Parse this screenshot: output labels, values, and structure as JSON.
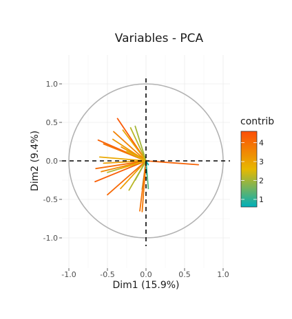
{
  "chart_data": {
    "type": "line",
    "title": "Variables - PCA",
    "xlabel": "Dim1 (15.9%)",
    "ylabel": "Dim2 (9.4%)",
    "xlim": [
      -1.0,
      1.0
    ],
    "ylim": [
      -1.0,
      1.0
    ],
    "x_ticks": [
      -1.0,
      -0.5,
      0.0,
      0.5,
      1.0
    ],
    "y_ticks": [
      -1.0,
      -0.5,
      0.0,
      0.5,
      1.0
    ],
    "x_tick_labels": [
      "-1.0",
      "-0.5",
      "0.0",
      "0.5",
      "1.0"
    ],
    "y_tick_labels": [
      "-1.0",
      "-0.5",
      "0.0",
      "0.5",
      "1.0"
    ],
    "grid": true,
    "correlation_circle": true,
    "legend": {
      "title": "contrib",
      "placement": "right",
      "scale": [
        1,
        2,
        3,
        4
      ],
      "range": [
        0.6,
        4.6
      ],
      "colors": [
        "#00AFBB",
        "#E7B800",
        "#FC4E07"
      ]
    },
    "vectors": [
      {
        "x": 0.68,
        "y": -0.05,
        "contrib": 4.2
      },
      {
        "x": -0.37,
        "y": 0.55,
        "contrib": 4.4
      },
      {
        "x": -0.62,
        "y": 0.27,
        "contrib": 4.2
      },
      {
        "x": -0.55,
        "y": 0.22,
        "contrib": 3.9
      },
      {
        "x": -0.42,
        "y": 0.38,
        "contrib": 3.6
      },
      {
        "x": -0.43,
        "y": 0.28,
        "contrib": 3.2
      },
      {
        "x": -0.3,
        "y": 0.4,
        "contrib": 2.9
      },
      {
        "x": -0.2,
        "y": 0.43,
        "contrib": 2.2
      },
      {
        "x": -0.14,
        "y": 0.45,
        "contrib": 2.0
      },
      {
        "x": -0.32,
        "y": 0.18,
        "contrib": 3.3
      },
      {
        "x": -0.6,
        "y": 0.05,
        "contrib": 2.9
      },
      {
        "x": -0.55,
        "y": -0.03,
        "contrib": 3.1
      },
      {
        "x": -0.65,
        "y": -0.1,
        "contrib": 4.1
      },
      {
        "x": -0.58,
        "y": -0.14,
        "contrib": 3.5
      },
      {
        "x": -0.66,
        "y": -0.27,
        "contrib": 4.3
      },
      {
        "x": -0.5,
        "y": -0.15,
        "contrib": 2.1
      },
      {
        "x": -0.33,
        "y": -0.1,
        "contrib": 2.8
      },
      {
        "x": -0.5,
        "y": -0.44,
        "contrib": 4.1
      },
      {
        "x": -0.33,
        "y": -0.36,
        "contrib": 3.1
      },
      {
        "x": -0.22,
        "y": -0.38,
        "contrib": 2.2
      },
      {
        "x": -0.14,
        "y": -0.25,
        "contrib": 2.0
      },
      {
        "x": -0.05,
        "y": -0.37,
        "contrib": 1.6
      },
      {
        "x": -0.08,
        "y": -0.65,
        "contrib": 3.9
      },
      {
        "x": -0.05,
        "y": -0.66,
        "contrib": 3.8
      },
      {
        "x": 0.03,
        "y": -0.36,
        "contrib": 1.3
      },
      {
        "x": 0.01,
        "y": -0.18,
        "contrib": 0.9
      },
      {
        "x": 0.03,
        "y": -0.05,
        "contrib": 0.7
      },
      {
        "x": -0.25,
        "y": 0.12,
        "contrib": 2.5
      }
    ]
  }
}
